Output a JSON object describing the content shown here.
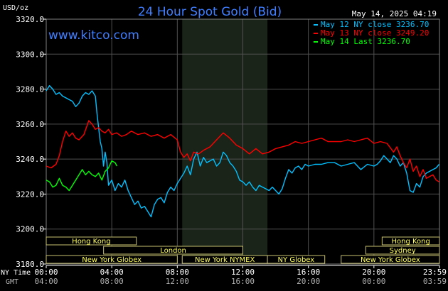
{
  "header": {
    "title": "24 Hour Spot Gold (Bid)",
    "unit": "USD/oz",
    "timestamp": "May 14, 2025 04:19",
    "site": "www.kitco.com"
  },
  "legend": {
    "position": "top-right",
    "entries": [
      {
        "label": "May 12 NY close 3236.70",
        "color": "#00c0ff"
      },
      {
        "label": "May 13 NY close 3249.20",
        "color": "#ff0000"
      },
      {
        "label": "May 14 Last 3236.70",
        "color": "#00ff00"
      }
    ]
  },
  "axis": {
    "ny_time_label": "NY Time",
    "gmt_label": "GMT",
    "ny_ticks": [
      "00:00",
      "04:00",
      "08:00",
      "12:00",
      "16:00",
      "20:00",
      "23:59"
    ],
    "gmt_ticks": [
      "04:00",
      "08:00",
      "12:00",
      "16:00",
      "20:00",
      "00:00",
      "03:59"
    ]
  },
  "sessions": [
    {
      "label": "Hong Kong",
      "start_hour": 0,
      "end_hour": 5.5,
      "row": 0
    },
    {
      "label": "London",
      "start_hour": 3.5,
      "end_hour": 12,
      "row": 1
    },
    {
      "label": "New York Globex",
      "start_hour": 0,
      "end_hour": 8,
      "row": 2
    },
    {
      "label": "New York NYMEX",
      "start_hour": 8.3,
      "end_hour": 13.5,
      "row": 2
    },
    {
      "label": "NY Globex",
      "start_hour": 13.5,
      "end_hour": 17,
      "row": 2
    },
    {
      "label": "Hong Kong",
      "start_hour": 20.5,
      "end_hour": 24,
      "row": 0
    },
    {
      "label": "Sydney",
      "start_hour": 19.5,
      "end_hour": 24,
      "row": 1
    },
    {
      "label": "New York Globex",
      "start_hour": 18,
      "end_hour": 24,
      "row": 2
    }
  ],
  "chart_data": {
    "type": "line",
    "ylim": [
      3180,
      3320
    ],
    "xlim": [
      0,
      24
    ],
    "yticks": [
      3180,
      3200,
      3220,
      3240,
      3260,
      3280,
      3300,
      3320
    ],
    "ytick_labels": [
      "3180.0",
      "3200.0",
      "3220.0",
      "3240.0",
      "3260.0",
      "3280.0",
      "3300.0",
      "3320.0"
    ],
    "shaded_range_hours": [
      8.3,
      13.5
    ],
    "grid": true,
    "series": [
      {
        "name": "May 12 NY close 3236.70",
        "color": "#00c0ff",
        "x": [
          0,
          0.2,
          0.4,
          0.6,
          0.8,
          1.0,
          1.2,
          1.4,
          1.6,
          1.8,
          2.0,
          2.2,
          2.4,
          2.6,
          2.8,
          3.0,
          3.1,
          3.2,
          3.3,
          3.4,
          3.5,
          3.6,
          3.7,
          3.8,
          4.0,
          4.2,
          4.4,
          4.6,
          4.8,
          5.0,
          5.2,
          5.4,
          5.6,
          5.8,
          6.0,
          6.2,
          6.4,
          6.6,
          6.8,
          7.0,
          7.2,
          7.4,
          7.6,
          7.8,
          8.0,
          8.2,
          8.4,
          8.6,
          8.8,
          9.0,
          9.2,
          9.4,
          9.6,
          9.8,
          10.0,
          10.2,
          10.4,
          10.6,
          10.8,
          11.0,
          11.2,
          11.4,
          11.6,
          11.8,
          12.0,
          12.2,
          12.4,
          12.6,
          12.8,
          13.0,
          13.2,
          13.4,
          13.6,
          13.8,
          14.0,
          14.2,
          14.4,
          14.6,
          14.8,
          15.0,
          15.2,
          15.4,
          15.6,
          15.8,
          16.0,
          16.4,
          16.8,
          17.2,
          17.6,
          18.0,
          18.4,
          18.8,
          19.2,
          19.6,
          20.0,
          20.2,
          20.4,
          20.6,
          20.8,
          21.0,
          21.2,
          21.4,
          21.6,
          21.8,
          22.0,
          22.2,
          22.4,
          22.6,
          22.8,
          23.0,
          23.2,
          23.4,
          23.6,
          23.8,
          23.98
        ],
        "y": [
          3279,
          3282,
          3280,
          3277,
          3278,
          3276,
          3275,
          3274,
          3273,
          3270,
          3272,
          3276,
          3278,
          3277,
          3279,
          3276,
          3266,
          3258,
          3250,
          3246,
          3236,
          3244,
          3238,
          3225,
          3228,
          3222,
          3226,
          3224,
          3228,
          3222,
          3218,
          3214,
          3216,
          3212,
          3213,
          3210,
          3207,
          3214,
          3217,
          3218,
          3215,
          3221,
          3224,
          3222,
          3226,
          3229,
          3232,
          3236,
          3231,
          3240,
          3244,
          3236,
          3241,
          3238,
          3239,
          3240,
          3236,
          3238,
          3244,
          3242,
          3238,
          3236,
          3233,
          3228,
          3227,
          3225,
          3227,
          3224,
          3222,
          3225,
          3224,
          3223,
          3222,
          3224,
          3222,
          3220,
          3223,
          3229,
          3234,
          3232,
          3235,
          3236,
          3234,
          3237,
          3236,
          3237,
          3237,
          3238,
          3238,
          3236,
          3237,
          3238,
          3234,
          3237,
          3236,
          3237,
          3239,
          3242,
          3240,
          3238,
          3242,
          3240,
          3236,
          3238,
          3232,
          3222,
          3221,
          3226,
          3224,
          3230,
          3232,
          3233,
          3234,
          3235,
          3237
        ]
      },
      {
        "name": "May 13 NY close 3249.20",
        "color": "#ff0000",
        "x": [
          0,
          0.3,
          0.6,
          0.8,
          1.0,
          1.2,
          1.4,
          1.6,
          1.8,
          2.0,
          2.3,
          2.6,
          2.8,
          3.0,
          3.2,
          3.4,
          3.6,
          3.8,
          4.0,
          4.3,
          4.6,
          4.9,
          5.2,
          5.6,
          6.0,
          6.4,
          6.8,
          7.2,
          7.6,
          8.0,
          8.2,
          8.4,
          8.6,
          8.8,
          9.0,
          9.3,
          9.6,
          10.0,
          10.4,
          10.8,
          11.2,
          11.6,
          12.0,
          12.4,
          12.8,
          13.2,
          13.6,
          14.0,
          14.4,
          14.8,
          15.2,
          15.6,
          16.0,
          16.4,
          16.8,
          17.2,
          17.6,
          18.0,
          18.4,
          18.8,
          19.2,
          19.6,
          20.0,
          20.4,
          20.8,
          21.2,
          21.4,
          21.6,
          21.8,
          22.0,
          22.2,
          22.4,
          22.6,
          22.8,
          23.0,
          23.2,
          23.4,
          23.6,
          23.8,
          23.98
        ],
        "y": [
          3236,
          3235,
          3237,
          3242,
          3250,
          3256,
          3253,
          3255,
          3252,
          3251,
          3254,
          3262,
          3260,
          3257,
          3258,
          3256,
          3255,
          3257,
          3254,
          3255,
          3253,
          3254,
          3256,
          3254,
          3255,
          3253,
          3254,
          3252,
          3254,
          3251,
          3244,
          3241,
          3243,
          3239,
          3244,
          3243,
          3245,
          3247,
          3251,
          3255,
          3252,
          3248,
          3246,
          3243,
          3246,
          3243,
          3244,
          3246,
          3247,
          3248,
          3250,
          3249,
          3250,
          3251,
          3252,
          3250,
          3250,
          3250,
          3251,
          3250,
          3251,
          3252,
          3249,
          3250,
          3249,
          3244,
          3247,
          3242,
          3238,
          3235,
          3240,
          3233,
          3236,
          3230,
          3234,
          3229,
          3230,
          3231,
          3228,
          3227
        ]
      },
      {
        "name": "May 14 Last 3236.70",
        "color": "#00ff00",
        "x": [
          0,
          0.2,
          0.4,
          0.6,
          0.8,
          1.0,
          1.2,
          1.4,
          1.6,
          1.8,
          2.0,
          2.2,
          2.4,
          2.6,
          2.8,
          3.0,
          3.2,
          3.4,
          3.6,
          3.8,
          4.0,
          4.2,
          4.32
        ],
        "y": [
          3228,
          3227,
          3224,
          3225,
          3229,
          3225,
          3224,
          3222,
          3225,
          3228,
          3231,
          3234,
          3231,
          3233,
          3231,
          3230,
          3232,
          3228,
          3233,
          3235,
          3239,
          3238,
          3236
        ]
      }
    ]
  }
}
